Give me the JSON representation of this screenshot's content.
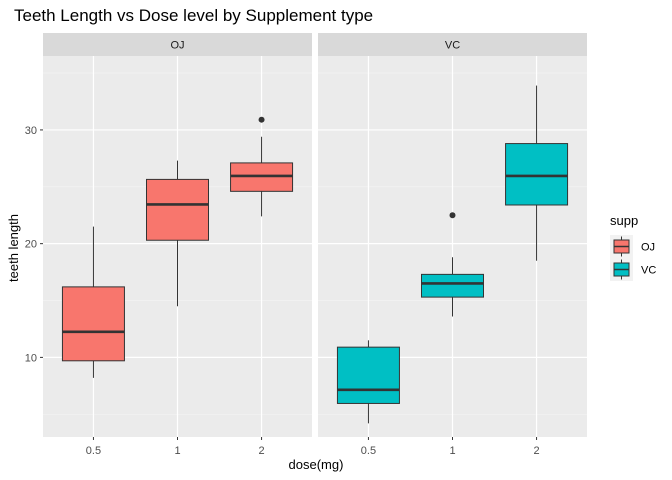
{
  "chart_data": {
    "type": "boxplot",
    "title": "Teeth Length vs Dose level by Supplement type",
    "xlabel": "dose(mg)",
    "ylabel": "teeth length",
    "categories": [
      "0.5",
      "1",
      "2"
    ],
    "ylim": [
      3.0,
      36.5
    ],
    "yticks": [
      10,
      20,
      30
    ],
    "grid": true,
    "legend": {
      "title": "supp",
      "position": "right",
      "entries": [
        {
          "label": "OJ",
          "color": "#F8766D"
        },
        {
          "label": "VC",
          "color": "#00BFC4"
        }
      ]
    },
    "facets": [
      {
        "label": "OJ",
        "color": "#F8766D",
        "boxes": [
          {
            "dose": "0.5",
            "whisker_low": 8.2,
            "q1": 9.7,
            "median": 12.25,
            "q3": 16.2,
            "whisker_high": 21.5,
            "outliers": []
          },
          {
            "dose": "1",
            "whisker_low": 14.5,
            "q1": 20.3,
            "median": 23.45,
            "q3": 25.65,
            "whisker_high": 27.3,
            "outliers": []
          },
          {
            "dose": "2",
            "whisker_low": 22.4,
            "q1": 24.6,
            "median": 25.95,
            "q3": 27.1,
            "whisker_high": 29.4,
            "outliers": [
              30.9
            ]
          }
        ]
      },
      {
        "label": "VC",
        "color": "#00BFC4",
        "boxes": [
          {
            "dose": "0.5",
            "whisker_low": 4.2,
            "q1": 5.95,
            "median": 7.15,
            "q3": 10.9,
            "whisker_high": 11.5,
            "outliers": []
          },
          {
            "dose": "1",
            "whisker_low": 13.6,
            "q1": 15.3,
            "median": 16.5,
            "q3": 17.3,
            "whisker_high": 18.8,
            "outliers": [
              22.5
            ]
          },
          {
            "dose": "2",
            "whisker_low": 18.5,
            "q1": 23.4,
            "median": 25.95,
            "q3": 28.8,
            "whisker_high": 33.9,
            "outliers": []
          }
        ]
      }
    ]
  }
}
